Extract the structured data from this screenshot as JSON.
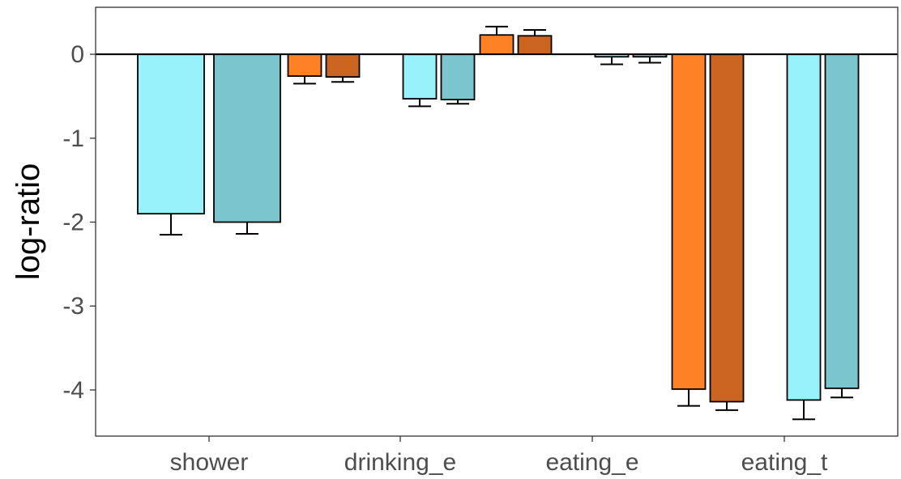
{
  "chart_data": {
    "type": "bar",
    "title": "",
    "xlabel": "",
    "ylabel": "log-ratio",
    "ylim": [
      -4.55,
      0.56
    ],
    "yticks": [
      0,
      -1,
      -2,
      -3,
      -4
    ],
    "ytick_labels": [
      "0",
      "-1",
      "-2",
      "-3",
      "-4"
    ],
    "grid": false,
    "legend": "none",
    "categories": [
      "shower",
      "drinking_e",
      "eating_e",
      "eating_t"
    ],
    "series": [
      {
        "color": "#fe8124",
        "values": [
          null,
          -0.26,
          0.23,
          -3.99
        ],
        "errors": [
          null,
          0.09,
          0.1,
          0.2
        ]
      },
      {
        "color": "#cb6420",
        "values": [
          null,
          -0.27,
          0.22,
          -4.14
        ],
        "errors": [
          null,
          0.06,
          0.07,
          0.1
        ]
      },
      {
        "color": "#97f2fc",
        "values": [
          -1.9,
          -0.53,
          -0.03,
          -4.12
        ],
        "errors": [
          0.25,
          0.09,
          0.09,
          0.23
        ]
      },
      {
        "color": "#7bc5ce",
        "values": [
          -2.0,
          -0.54,
          -0.03,
          -3.98
        ],
        "errors": [
          0.14,
          0.05,
          0.07,
          0.11
        ]
      }
    ]
  }
}
